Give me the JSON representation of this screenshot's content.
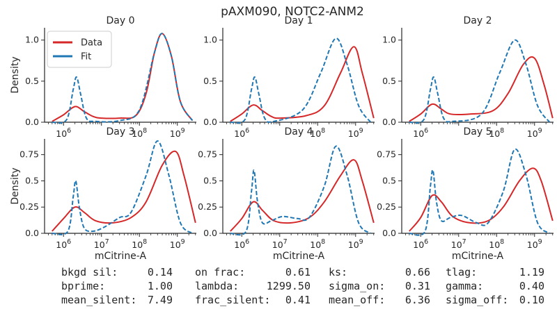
{
  "figure": {
    "title": "pAXM090, NOTC2-ANM2"
  },
  "colors": {
    "data": "#d62728",
    "fit": "#1f77b4",
    "axis": "#262626"
  },
  "legend": {
    "items": [
      {
        "label": "Data",
        "style": "solid"
      },
      {
        "label": "Fit",
        "style": "dashed"
      }
    ]
  },
  "params": {
    "rows": [
      [
        {
          "name": "bkgd sil:",
          "value": "0.14"
        },
        {
          "name": "on frac:",
          "value": "0.61"
        },
        {
          "name": "ks:",
          "value": "0.66"
        },
        {
          "name": "tlag:",
          "value": "1.19"
        }
      ],
      [
        {
          "name": "bprime:",
          "value": "1.00"
        },
        {
          "name": "lambda:",
          "value": "1299.50"
        },
        {
          "name": "sigma_on:",
          "value": "0.31"
        },
        {
          "name": "gamma:",
          "value": "0.40"
        }
      ],
      [
        {
          "name": "mean_silent:",
          "value": "7.49"
        },
        {
          "name": "frac_silent:",
          "value": "0.41"
        },
        {
          "name": "mean_off:",
          "value": "6.36"
        },
        {
          "name": "sigma_off:",
          "value": "0.10"
        }
      ]
    ]
  },
  "chart_data": [
    {
      "type": "line",
      "title": "Day 0",
      "xlabel": "",
      "ylabel": "Density",
      "x_scale": "log",
      "xlim": [
        316228,
        3162278000
      ],
      "ylim": [
        0,
        1.15
      ],
      "yticks": [
        0.0,
        0.5,
        1.0
      ],
      "xticks": [
        {
          "base": "10",
          "exp": "6"
        },
        {
          "base": "10",
          "exp": "8"
        },
        {
          "base": "10",
          "exp": "9"
        }
      ],
      "series": [
        {
          "name": "Data",
          "style": "solid",
          "points": [
            [
              500000,
              0.01
            ],
            [
              1000000,
              0.09
            ],
            [
              2000000,
              0.19
            ],
            [
              3500000,
              0.13
            ],
            [
              6000000,
              0.07
            ],
            [
              10000000,
              0.05
            ],
            [
              30000000,
              0.05
            ],
            [
              80000000,
              0.08
            ],
            [
              150000000,
              0.35
            ],
            [
              250000000,
              0.85
            ],
            [
              400000000,
              1.08
            ],
            [
              700000000,
              0.8
            ],
            [
              1200000000,
              0.25
            ],
            [
              2500000000,
              0.02
            ]
          ]
        },
        {
          "name": "Fit",
          "style": "dashed",
          "points": [
            [
              500000,
              0.0
            ],
            [
              1200000,
              0.03
            ],
            [
              1800000,
              0.4
            ],
            [
              2200000,
              0.55
            ],
            [
              2800000,
              0.35
            ],
            [
              4000000,
              0.05
            ],
            [
              7000000,
              0.01
            ],
            [
              30000000,
              0.02
            ],
            [
              100000000,
              0.15
            ],
            [
              250000000,
              0.85
            ],
            [
              400000000,
              1.08
            ],
            [
              700000000,
              0.8
            ],
            [
              1200000000,
              0.25
            ],
            [
              2500000000,
              0.02
            ]
          ]
        }
      ]
    },
    {
      "type": "line",
      "title": "Day 1",
      "xlabel": "",
      "ylabel": "",
      "x_scale": "log",
      "xlim": [
        316228,
        3162278000
      ],
      "ylim": [
        0,
        1.15
      ],
      "yticks": [
        0.0,
        0.5,
        1.0
      ],
      "xticks": [
        {
          "base": "10",
          "exp": "6"
        },
        {
          "base": "10",
          "exp": "8"
        },
        {
          "base": "10",
          "exp": "9"
        }
      ],
      "series": [
        {
          "name": "Data",
          "style": "solid",
          "points": [
            [
              500000,
              0.01
            ],
            [
              1000000,
              0.1
            ],
            [
              2000000,
              0.21
            ],
            [
              3500000,
              0.14
            ],
            [
              6000000,
              0.07
            ],
            [
              10000000,
              0.05
            ],
            [
              50000000,
              0.08
            ],
            [
              150000000,
              0.2
            ],
            [
              400000000,
              0.6
            ],
            [
              900000000,
              0.92
            ],
            [
              1500000000,
              0.6
            ],
            [
              3000000000,
              0.05
            ]
          ]
        },
        {
          "name": "Fit",
          "style": "dashed",
          "points": [
            [
              500000,
              0.0
            ],
            [
              1200000,
              0.03
            ],
            [
              1800000,
              0.4
            ],
            [
              2200000,
              0.55
            ],
            [
              2800000,
              0.35
            ],
            [
              4000000,
              0.05
            ],
            [
              7000000,
              0.01
            ],
            [
              40000000,
              0.15
            ],
            [
              120000000,
              0.6
            ],
            [
              300000000,
              1.02
            ],
            [
              600000000,
              0.7
            ],
            [
              1200000000,
              0.2
            ],
            [
              2500000000,
              0.0
            ]
          ]
        }
      ]
    },
    {
      "type": "line",
      "title": "Day 2",
      "xlabel": "",
      "ylabel": "",
      "x_scale": "log",
      "xlim": [
        316228,
        3162278000
      ],
      "ylim": [
        0,
        1.15
      ],
      "yticks": [
        0.0,
        0.5,
        1.0
      ],
      "xticks": [
        {
          "base": "10",
          "exp": "6"
        },
        {
          "base": "10",
          "exp": "8"
        },
        {
          "base": "10",
          "exp": "9"
        }
      ],
      "series": [
        {
          "name": "Data",
          "style": "solid",
          "points": [
            [
              500000,
              0.01
            ],
            [
              1000000,
              0.1
            ],
            [
              2000000,
              0.22
            ],
            [
              3500000,
              0.16
            ],
            [
              6000000,
              0.1
            ],
            [
              20000000,
              0.1
            ],
            [
              80000000,
              0.14
            ],
            [
              200000000,
              0.35
            ],
            [
              500000000,
              0.7
            ],
            [
              1000000000,
              0.78
            ],
            [
              1800000000,
              0.45
            ],
            [
              3000000000,
              0.05
            ]
          ]
        },
        {
          "name": "Fit",
          "style": "dashed",
          "points": [
            [
              500000,
              0.0
            ],
            [
              1200000,
              0.03
            ],
            [
              1800000,
              0.4
            ],
            [
              2200000,
              0.55
            ],
            [
              2800000,
              0.35
            ],
            [
              4000000,
              0.05
            ],
            [
              7000000,
              0.01
            ],
            [
              40000000,
              0.1
            ],
            [
              120000000,
              0.6
            ],
            [
              300000000,
              1.0
            ],
            [
              600000000,
              0.7
            ],
            [
              1200000000,
              0.2
            ],
            [
              2500000000,
              0.0
            ]
          ]
        }
      ]
    },
    {
      "type": "line",
      "title": "Day 3",
      "xlabel": "mCitrine-A",
      "ylabel": "Density",
      "x_scale": "log",
      "xlim": [
        316228,
        3162278000
      ],
      "ylim": [
        0,
        0.9
      ],
      "yticks": [
        0.0,
        0.25,
        0.5,
        0.75
      ],
      "xticks": [
        {
          "base": "10",
          "exp": "6"
        },
        {
          "base": "10",
          "exp": "7"
        },
        {
          "base": "10",
          "exp": "8"
        },
        {
          "base": "10",
          "exp": "9"
        }
      ],
      "series": [
        {
          "name": "Data",
          "style": "solid",
          "points": [
            [
              500000,
              0.02
            ],
            [
              1000000,
              0.14
            ],
            [
              2000000,
              0.25
            ],
            [
              3500000,
              0.2
            ],
            [
              7000000,
              0.12
            ],
            [
              20000000,
              0.1
            ],
            [
              60000000,
              0.15
            ],
            [
              150000000,
              0.3
            ],
            [
              400000000,
              0.65
            ],
            [
              900000000,
              0.78
            ],
            [
              1500000000,
              0.55
            ],
            [
              3000000000,
              0.1
            ]
          ]
        },
        {
          "name": "Fit",
          "style": "dashed",
          "points": [
            [
              500000,
              0.0
            ],
            [
              1300000,
              0.02
            ],
            [
              1800000,
              0.35
            ],
            [
              2100000,
              0.5
            ],
            [
              2600000,
              0.25
            ],
            [
              3500000,
              0.05
            ],
            [
              6000000,
              0.02
            ],
            [
              12000000,
              0.06
            ],
            [
              30000000,
              0.15
            ],
            [
              60000000,
              0.2
            ],
            [
              150000000,
              0.55
            ],
            [
              300000000,
              0.88
            ],
            [
              600000000,
              0.55
            ],
            [
              1200000000,
              0.1
            ],
            [
              2500000000,
              0.0
            ]
          ]
        }
      ]
    },
    {
      "type": "line",
      "title": "Day 4",
      "xlabel": "mCitrine-A",
      "ylabel": "",
      "x_scale": "log",
      "xlim": [
        316228,
        3162278000
      ],
      "ylim": [
        0,
        0.9
      ],
      "yticks": [
        0.0,
        0.25,
        0.5,
        0.75
      ],
      "xticks": [
        {
          "base": "10",
          "exp": "6"
        },
        {
          "base": "10",
          "exp": "7"
        },
        {
          "base": "10",
          "exp": "8"
        },
        {
          "base": "10",
          "exp": "9"
        }
      ],
      "series": [
        {
          "name": "Data",
          "style": "solid",
          "points": [
            [
              500000,
              0.02
            ],
            [
              1000000,
              0.14
            ],
            [
              2000000,
              0.3
            ],
            [
              3500000,
              0.22
            ],
            [
              7000000,
              0.12
            ],
            [
              20000000,
              0.1
            ],
            [
              60000000,
              0.15
            ],
            [
              150000000,
              0.3
            ],
            [
              400000000,
              0.55
            ],
            [
              900000000,
              0.7
            ],
            [
              1500000000,
              0.5
            ],
            [
              3000000000,
              0.1
            ]
          ]
        },
        {
          "name": "Fit",
          "style": "dashed",
          "points": [
            [
              500000,
              0.0
            ],
            [
              1300000,
              0.02
            ],
            [
              1800000,
              0.4
            ],
            [
              2100000,
              0.6
            ],
            [
              2600000,
              0.3
            ],
            [
              3500000,
              0.1
            ],
            [
              6000000,
              0.12
            ],
            [
              12000000,
              0.16
            ],
            [
              30000000,
              0.14
            ],
            [
              60000000,
              0.15
            ],
            [
              150000000,
              0.45
            ],
            [
              300000000,
              0.83
            ],
            [
              600000000,
              0.55
            ],
            [
              1200000000,
              0.1
            ],
            [
              2500000000,
              0.0
            ]
          ]
        }
      ]
    },
    {
      "type": "line",
      "title": "Day 5",
      "xlabel": "mCitrine-A",
      "ylabel": "",
      "x_scale": "log",
      "xlim": [
        316228,
        3162278000
      ],
      "ylim": [
        0,
        0.9
      ],
      "yticks": [
        0.0,
        0.25,
        0.5,
        0.75
      ],
      "xticks": [
        {
          "base": "10",
          "exp": "6"
        },
        {
          "base": "10",
          "exp": "7"
        },
        {
          "base": "10",
          "exp": "8"
        },
        {
          "base": "10",
          "exp": "9"
        }
      ],
      "series": [
        {
          "name": "Data",
          "style": "solid",
          "points": [
            [
              500000,
              0.02
            ],
            [
              1000000,
              0.15
            ],
            [
              2000000,
              0.36
            ],
            [
              3500000,
              0.3
            ],
            [
              7000000,
              0.16
            ],
            [
              20000000,
              0.1
            ],
            [
              60000000,
              0.12
            ],
            [
              150000000,
              0.25
            ],
            [
              400000000,
              0.5
            ],
            [
              900000000,
              0.62
            ],
            [
              1500000000,
              0.5
            ],
            [
              3000000000,
              0.12
            ]
          ]
        },
        {
          "name": "Fit",
          "style": "dashed",
          "points": [
            [
              500000,
              0.0
            ],
            [
              1300000,
              0.02
            ],
            [
              1800000,
              0.45
            ],
            [
              2100000,
              0.6
            ],
            [
              2600000,
              0.3
            ],
            [
              3500000,
              0.12
            ],
            [
              6000000,
              0.15
            ],
            [
              12000000,
              0.17
            ],
            [
              30000000,
              0.1
            ],
            [
              60000000,
              0.1
            ],
            [
              150000000,
              0.4
            ],
            [
              300000000,
              0.8
            ],
            [
              600000000,
              0.55
            ],
            [
              1200000000,
              0.1
            ],
            [
              2500000000,
              0.0
            ]
          ]
        }
      ]
    }
  ]
}
